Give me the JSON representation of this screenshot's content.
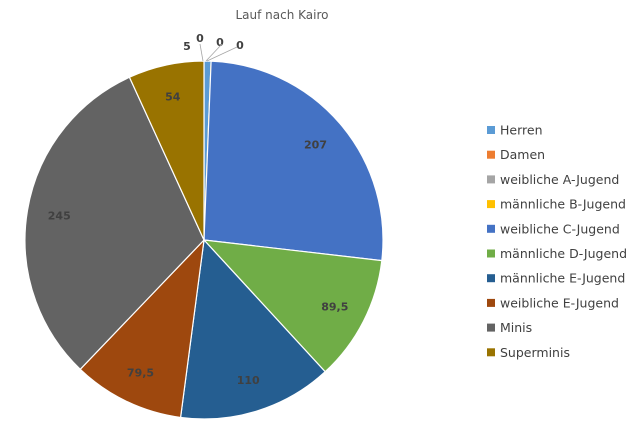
{
  "chart_data": {
    "type": "pie",
    "title": "Lauf nach Kairo",
    "legend_position": "right",
    "slices": [
      {
        "label": "Herren",
        "value": 5,
        "label_text": "5",
        "color": "#5B9BD5"
      },
      {
        "label": "Damen",
        "value": 0,
        "label_text": "0",
        "color": "#ED7D31"
      },
      {
        "label": "weibliche A-Jugend",
        "value": 0,
        "label_text": "0",
        "color": "#A5A5A5"
      },
      {
        "label": "männliche B-Jugend",
        "value": 0,
        "label_text": "0",
        "color": "#FFC000"
      },
      {
        "label": "weibliche C-Jugend",
        "value": 207,
        "label_text": "207",
        "color": "#4472C4"
      },
      {
        "label": "männliche D-Jugend",
        "value": 89.5,
        "label_text": "89,5",
        "color": "#70AD47"
      },
      {
        "label": "männliche E-Jugend",
        "value": 110,
        "label_text": "110",
        "color": "#255E91"
      },
      {
        "label": "weibliche E-Jugend",
        "value": 79.5,
        "label_text": "79,5",
        "color": "#9E480E"
      },
      {
        "label": "Minis",
        "value": 245,
        "label_text": "245",
        "color": "#636363"
      },
      {
        "label": "Superminis",
        "value": 54,
        "label_text": "54",
        "color": "#997300"
      }
    ]
  }
}
